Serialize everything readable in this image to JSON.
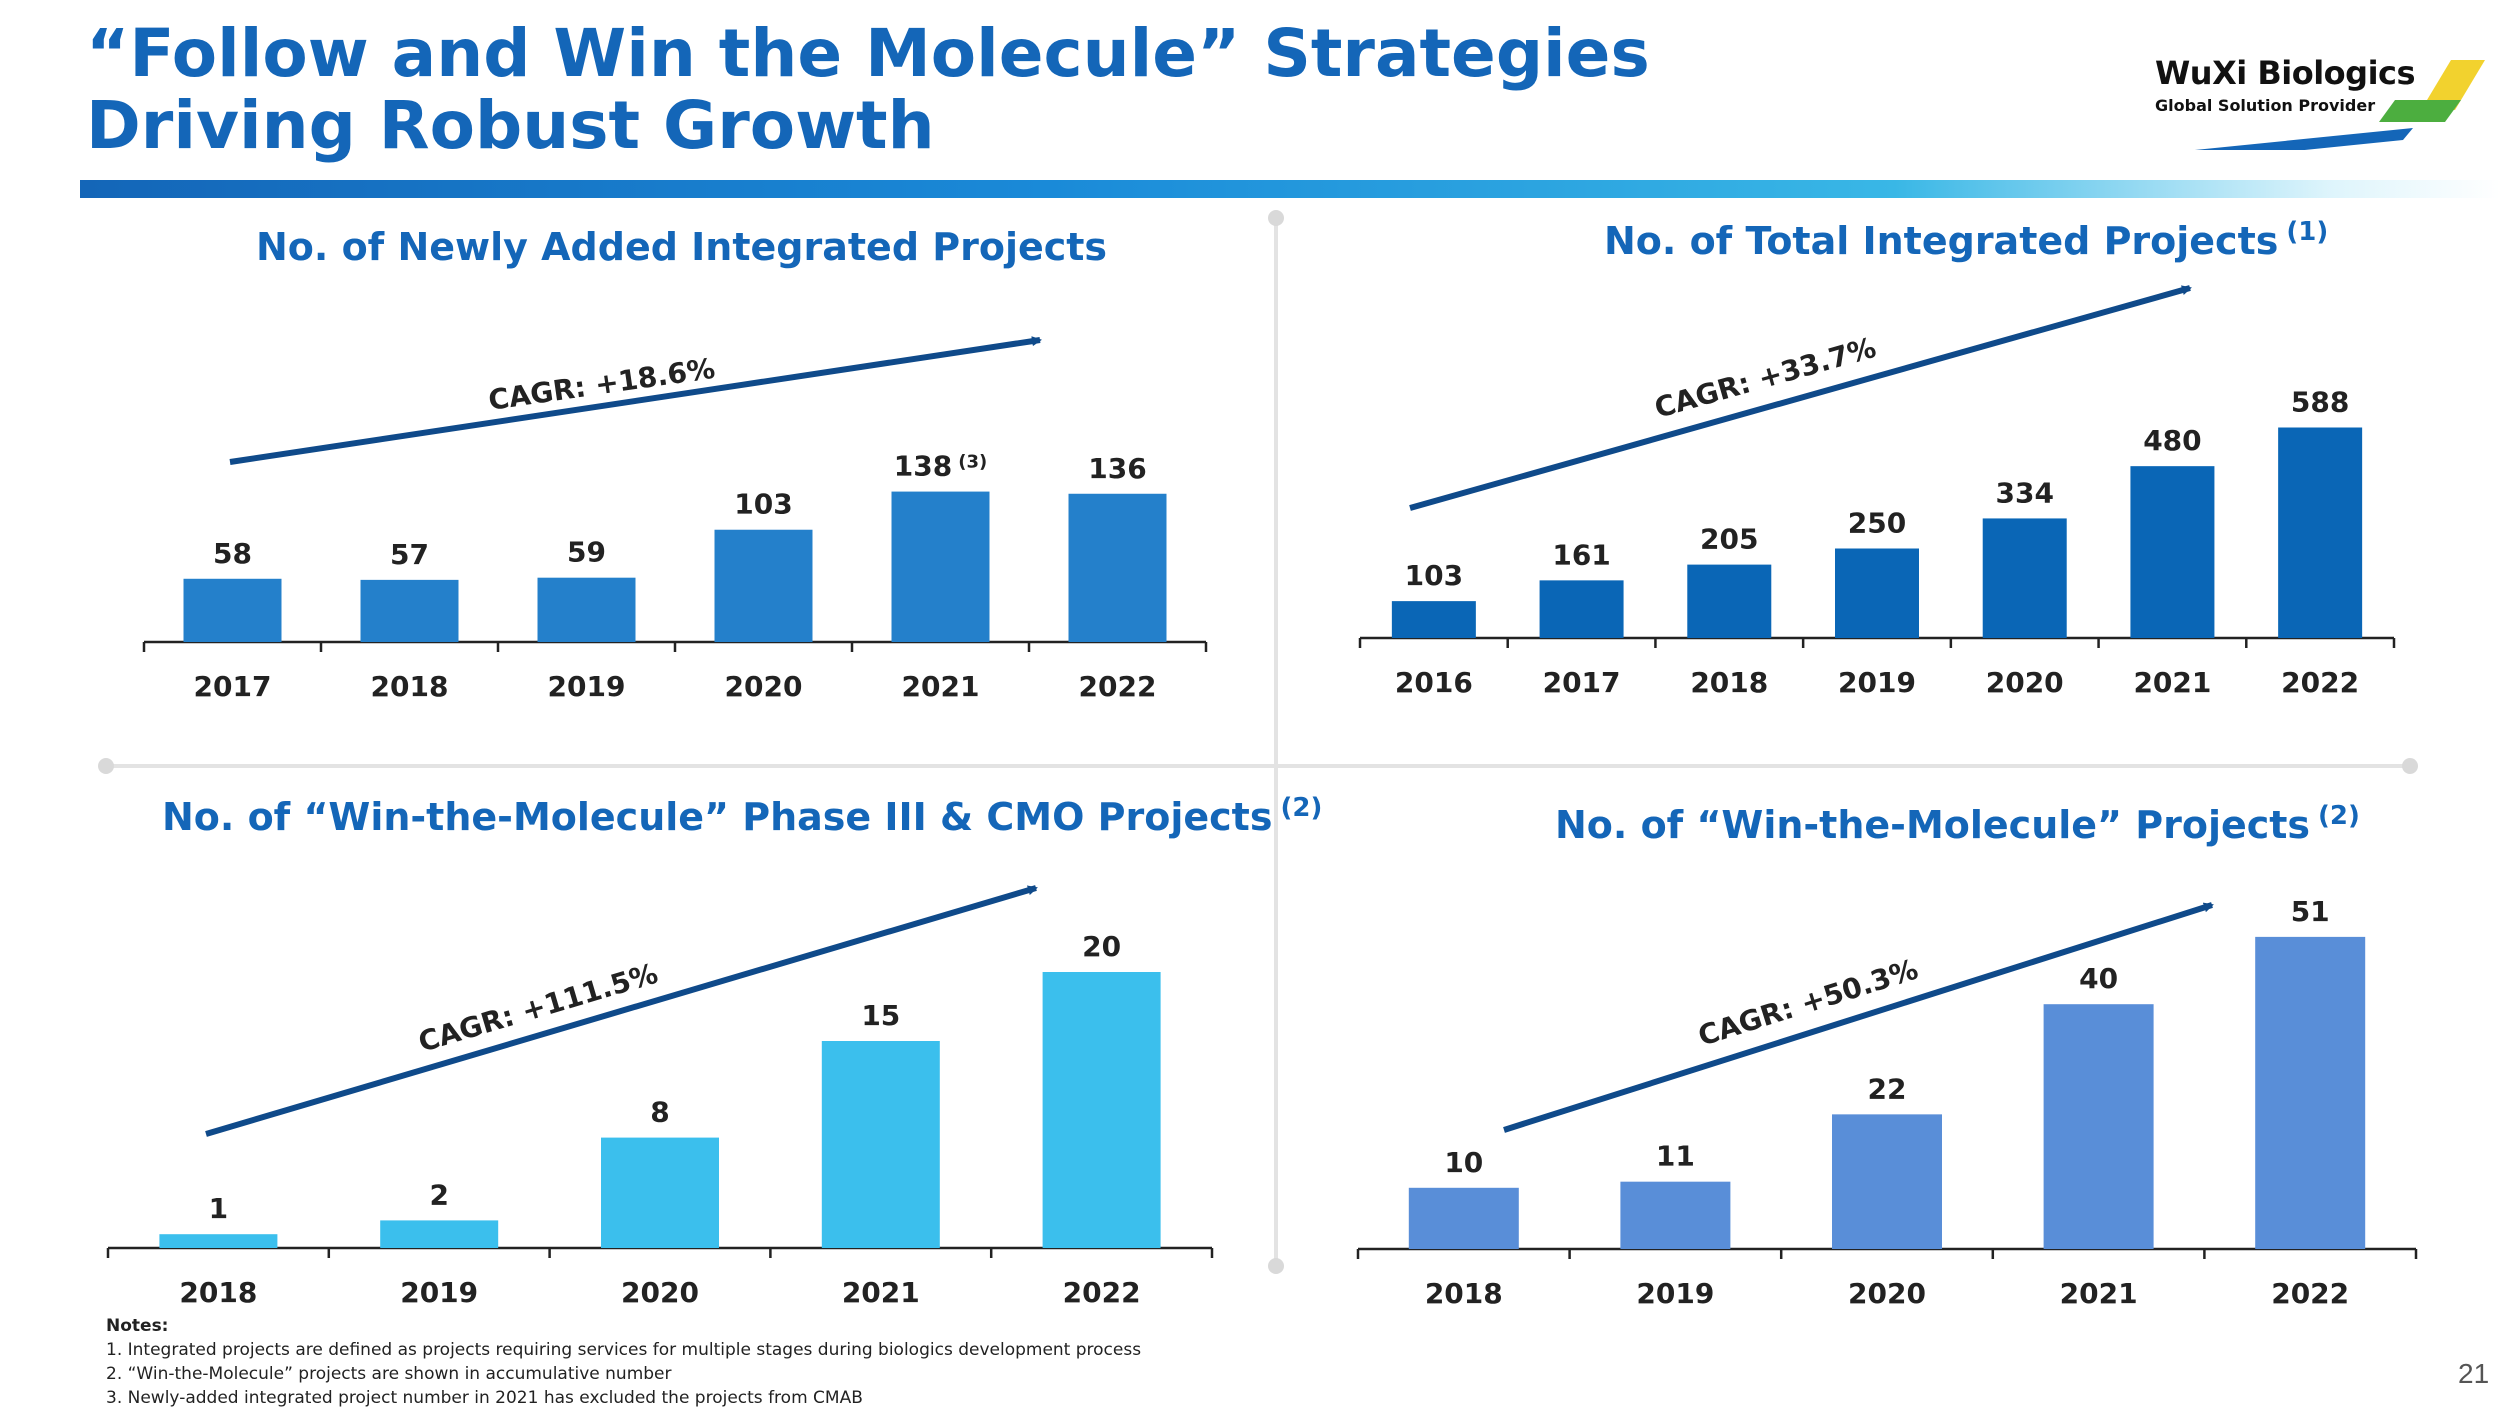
{
  "header": {
    "title_line1": "“Follow and Win the Molecule” Strategies",
    "title_line2": "Driving Robust Growth"
  },
  "logo": {
    "name": "WuXi Biologics",
    "tagline": "Global Solution Provider"
  },
  "colors": {
    "title": "#1466b8",
    "header_band": "#1a8ad8"
  },
  "chart_data": [
    {
      "type": "bar",
      "title": "No. of Newly Added Integrated Projects",
      "title_sup": "",
      "categories": [
        "2017",
        "2018",
        "2019",
        "2020",
        "2021",
        "2022"
      ],
      "values": [
        58,
        57,
        59,
        103,
        138,
        136
      ],
      "value_labels": [
        "58",
        "57",
        "59",
        "103",
        "138",
        "136"
      ],
      "value_label_sups": [
        "",
        "",
        "",
        "",
        "(3)",
        ""
      ],
      "cagr": "CAGR: +18.6%",
      "ylim": [
        0,
        140
      ],
      "color": "#2480cb",
      "xlabel": "",
      "ylabel": ""
    },
    {
      "type": "bar",
      "title": "No. of Total Integrated Projects",
      "title_sup": "(1)",
      "categories": [
        "2016",
        "2017",
        "2018",
        "2019",
        "2020",
        "2021",
        "2022"
      ],
      "values": [
        103,
        161,
        205,
        250,
        334,
        480,
        588
      ],
      "value_labels": [
        "103",
        "161",
        "205",
        "250",
        "334",
        "480",
        "588"
      ],
      "value_label_sups": [
        "",
        "",
        "",
        "",
        "",
        "",
        ""
      ],
      "cagr": "CAGR: +33.7%",
      "ylim": [
        0,
        600
      ],
      "color": "#0a66b6",
      "xlabel": "",
      "ylabel": ""
    },
    {
      "type": "bar",
      "title": "No. of “Win-the-Molecule” Phase III & CMO Projects",
      "title_sup": "(2)",
      "categories": [
        "2018",
        "2019",
        "2020",
        "2021",
        "2022"
      ],
      "values": [
        1,
        2,
        8,
        15,
        20
      ],
      "value_labels": [
        "1",
        "2",
        "8",
        "15",
        "20"
      ],
      "value_label_sups": [
        "",
        "",
        "",
        "",
        ""
      ],
      "cagr": "CAGR: +111.5%",
      "ylim": [
        0,
        22
      ],
      "color": "#3bbfed",
      "xlabel": "",
      "ylabel": ""
    },
    {
      "type": "bar",
      "title": "No. of “Win-the-Molecule” Projects",
      "title_sup": "(2)",
      "categories": [
        "2018",
        "2019",
        "2020",
        "2021",
        "2022"
      ],
      "values": [
        10,
        11,
        22,
        40,
        51
      ],
      "value_labels": [
        "10",
        "11",
        "22",
        "40",
        "51"
      ],
      "value_label_sups": [
        "",
        "",
        "",
        "",
        ""
      ],
      "cagr": "CAGR: +50.3%",
      "ylim": [
        0,
        60
      ],
      "color": "#598ed8",
      "xlabel": "",
      "ylabel": ""
    }
  ],
  "notes": {
    "title": "Notes:",
    "items": [
      "1. Integrated projects are defined as projects requiring services for multiple stages during biologics development process",
      "2. “Win-the-Molecule” projects are shown in accumulative number",
      "3. Newly-added integrated project number in 2021 has excluded the projects from CMAB"
    ]
  },
  "page_number": "21"
}
